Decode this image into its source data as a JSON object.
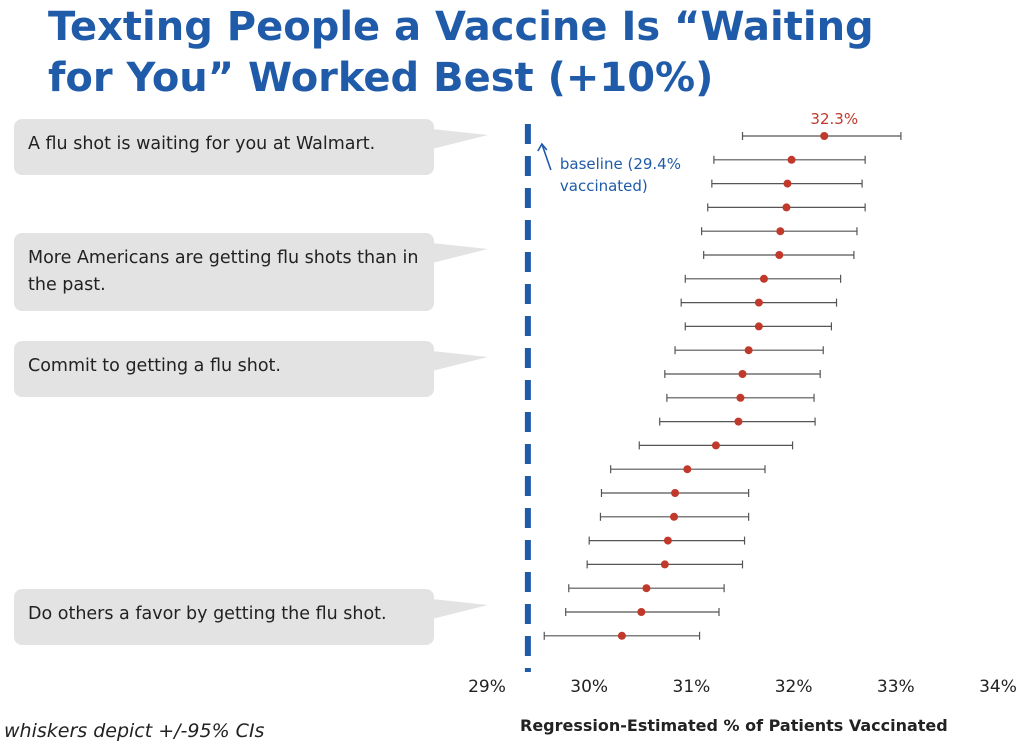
{
  "slide": {
    "title_line1": "Texting People a Vaccine Is “Waiting",
    "title_line2": "for You” Worked Best (+10%)",
    "footnote": "whiskers depict +/-95% CIs",
    "messages": [
      "A flu shot is waiting for you at Walmart.",
      "More Americans are getting flu shots than in the past.",
      "Commit to getting a flu shot.",
      "Do others a favor by getting the flu shot."
    ]
  },
  "colors": {
    "title": "#1f5ba8",
    "point": "#c0392b",
    "baseline": "#1f5ba8",
    "whisker": "#555555",
    "bubble": "#e3e3e3"
  },
  "chart_data": {
    "type": "scatter",
    "xlabel": "Regression-Estimated % of Patients Vaccinated",
    "xlim": [
      29,
      34
    ],
    "xticks": [
      "29%",
      "30%",
      "31%",
      "32%",
      "33%",
      "34%"
    ],
    "baseline": {
      "value": 29.4,
      "label_line1": "baseline (29.4%",
      "label_line2": "vaccinated)"
    },
    "top_label": "32.3%",
    "points": [
      {
        "est": 32.3,
        "lo": 31.5,
        "hi": 33.05
      },
      {
        "est": 31.98,
        "lo": 31.22,
        "hi": 32.7
      },
      {
        "est": 31.94,
        "lo": 31.2,
        "hi": 32.67
      },
      {
        "est": 31.93,
        "lo": 31.16,
        "hi": 32.7
      },
      {
        "est": 31.87,
        "lo": 31.1,
        "hi": 32.62
      },
      {
        "est": 31.86,
        "lo": 31.12,
        "hi": 32.59
      },
      {
        "est": 31.71,
        "lo": 30.94,
        "hi": 32.46
      },
      {
        "est": 31.66,
        "lo": 30.9,
        "hi": 32.42
      },
      {
        "est": 31.66,
        "lo": 30.94,
        "hi": 32.37
      },
      {
        "est": 31.56,
        "lo": 30.84,
        "hi": 32.29
      },
      {
        "est": 31.5,
        "lo": 30.74,
        "hi": 32.26
      },
      {
        "est": 31.48,
        "lo": 30.76,
        "hi": 32.2
      },
      {
        "est": 31.46,
        "lo": 30.69,
        "hi": 32.21
      },
      {
        "est": 31.24,
        "lo": 30.49,
        "hi": 31.99
      },
      {
        "est": 30.96,
        "lo": 30.21,
        "hi": 31.72
      },
      {
        "est": 30.84,
        "lo": 30.12,
        "hi": 31.56
      },
      {
        "est": 30.83,
        "lo": 30.11,
        "hi": 31.56
      },
      {
        "est": 30.77,
        "lo": 30.0,
        "hi": 31.52
      },
      {
        "est": 30.74,
        "lo": 29.98,
        "hi": 31.5
      },
      {
        "est": 30.56,
        "lo": 29.8,
        "hi": 31.32
      },
      {
        "est": 30.51,
        "lo": 29.77,
        "hi": 31.27
      },
      {
        "est": 30.32,
        "lo": 29.56,
        "hi": 31.08
      }
    ]
  }
}
